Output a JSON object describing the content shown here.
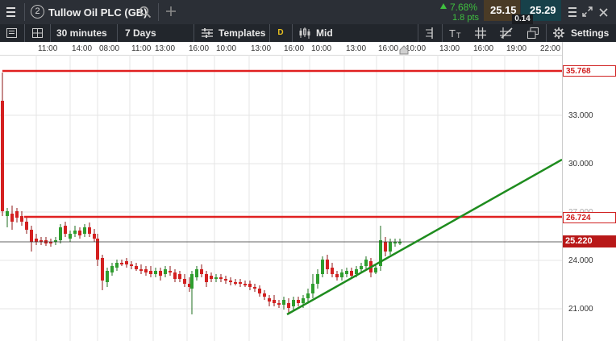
{
  "header": {
    "menu_icon": "hamburger-icon",
    "badge_number": "2",
    "instrument": "Tullow Oil PLC (GB)",
    "search_icon": "search-icon",
    "add_icon": "plus-icon",
    "change_percent": "7.68%",
    "change_points": "1.8 pts",
    "sell_price": "25.15",
    "buy_price": "25.29",
    "spread": "0.14",
    "window_icons": [
      "menu-icon",
      "expand-icon",
      "close-icon"
    ]
  },
  "toolbar": {
    "interval": "30 minutes",
    "range": "7 Days",
    "templates": "Templates",
    "d_badge": "D",
    "price_type": "Mid",
    "settings": "Settings"
  },
  "time_axis": {
    "labels": [
      "11:00",
      "14:00",
      "08:00",
      "11:00",
      "13:00",
      "16:00",
      "10:00",
      "13:00",
      "16:00",
      "10:00",
      "13:00",
      "16:00",
      "10:00",
      "13:00",
      "16:00",
      "19:00",
      "22:00"
    ]
  },
  "price_axis": {
    "ticks": [
      "33.000",
      "30.000",
      "24.000",
      "21.000"
    ],
    "ticks_partial": [
      "27.000"
    ],
    "current_price": "25.220",
    "line_labels": [
      "35.768",
      "26.724"
    ]
  },
  "colors": {
    "up": "#2e9e2e",
    "down": "#d42020",
    "trendline": "#1e8c1e",
    "hline": "#e02020",
    "header_bg": "#2b2f36",
    "toolbar_bg": "#22262c",
    "sell_bg": "#4a3b26",
    "buy_bg": "#17414a"
  }
}
